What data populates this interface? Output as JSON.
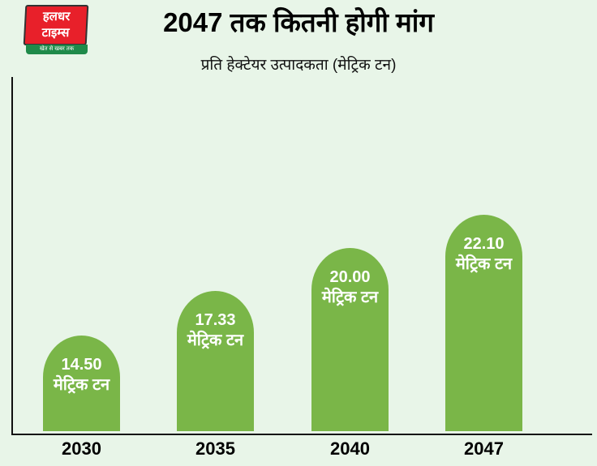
{
  "logo": {
    "line1": "हलधर",
    "line2": "टाइम्स",
    "tagline": "खेत से खबर तक",
    "colors": {
      "red": "#e8202a",
      "green": "#1f8a4a"
    }
  },
  "chart_data": {
    "type": "bar",
    "title": "2047 तक कितनी होगी मांग",
    "subtitle": "प्रति हेक्टेयर उत्पादकता (मेट्रिक टन)",
    "categories": [
      "2030",
      "2035",
      "2040",
      "2047"
    ],
    "values": [
      14.5,
      17.33,
      20.0,
      22.1
    ],
    "data_labels": [
      "14.50",
      "17.33",
      "20.00",
      "22.10"
    ],
    "unit_label": "मेट्रिक टन",
    "bar_color": "#7ab648",
    "background": "#e8f5e8",
    "grid": false,
    "legend": "none"
  }
}
